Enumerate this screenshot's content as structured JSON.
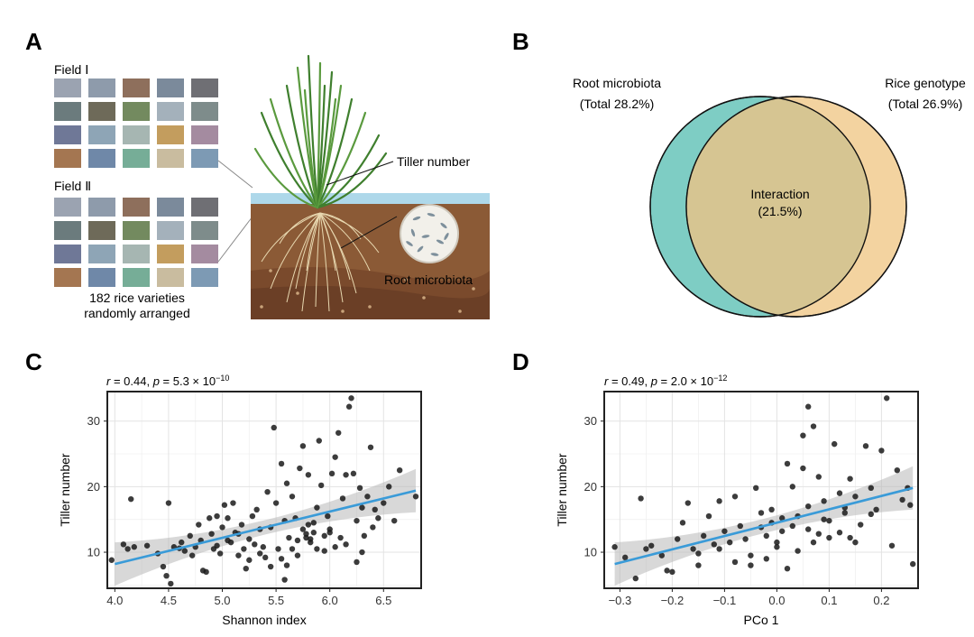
{
  "panels": {
    "a": "A",
    "b": "B",
    "c": "C",
    "d": "D"
  },
  "panel_a": {
    "field1_label": "Field Ⅰ",
    "field2_label": "Field Ⅱ",
    "caption_line1": "182 rice varieties",
    "caption_line2": "randomly arranged",
    "tiller_label": "Tiller number",
    "microbiota_label": "Root microbiota",
    "grid_colors": [
      [
        "#9ba3b1",
        "#8e9bab",
        "#8e6f5c",
        "#7b8a9b",
        "#6f6f74"
      ],
      [
        "#6b7b7d",
        "#6e6a59",
        "#738a5f",
        "#a4b1bb",
        "#7e8c8b"
      ],
      [
        "#6f7897",
        "#8ea5b6",
        "#a6b6b2",
        "#c39d5e",
        "#a48ba0"
      ],
      [
        "#a47651",
        "#6f88a8",
        "#76ad97",
        "#c9bc9f",
        "#7d9ab4"
      ]
    ],
    "soil_color": "#8b5a36",
    "water_color": "#aed8ea"
  },
  "panel_b": {
    "left_label": "Root microbiota",
    "left_total": "(Total 28.2%)",
    "right_label": "Rice genotype",
    "right_total": "(Total 26.9%)",
    "center_label": "Interaction",
    "center_value": "(21.5%)",
    "left_color": "#7ecdc4",
    "right_color": "#f3d3a0",
    "overlap_color": "#d6c592"
  },
  "chart_data": [
    {
      "type": "scatter",
      "panel": "C",
      "stat_prefix_r": "r",
      "stat_r_value": " = 0.44, ",
      "stat_prefix_p": "p",
      "stat_p_value": " = 5.3 × 10",
      "stat_p_exp": "−10",
      "xlabel": "Shannon index",
      "ylabel": "Tiller number",
      "xlim": [
        3.93,
        6.85
      ],
      "ylim": [
        4.5,
        34.5
      ],
      "xticks": [
        4.0,
        4.5,
        5.0,
        5.5,
        6.0,
        6.5
      ],
      "xtick_labels": [
        "4.0",
        "4.5",
        "5.0",
        "5.5",
        "6.0",
        "6.5"
      ],
      "yticks": [
        10,
        20,
        30
      ],
      "ytick_labels": [
        "10",
        "20",
        "30"
      ],
      "fit": {
        "x": [
          4.0,
          6.8
        ],
        "y": [
          8.2,
          19.4
        ]
      },
      "fit_color": "#3a9bd8",
      "points": [
        [
          3.97,
          8.8
        ],
        [
          4.08,
          11.2
        ],
        [
          4.12,
          10.5
        ],
        [
          4.15,
          18.1
        ],
        [
          4.18,
          10.8
        ],
        [
          4.3,
          11.0
        ],
        [
          4.4,
          9.8
        ],
        [
          4.45,
          7.8
        ],
        [
          4.48,
          6.4
        ],
        [
          4.5,
          17.5
        ],
        [
          4.52,
          5.2
        ],
        [
          4.55,
          10.8
        ],
        [
          4.6,
          10.6
        ],
        [
          4.62,
          11.5
        ],
        [
          4.65,
          10.2
        ],
        [
          4.7,
          12.5
        ],
        [
          4.72,
          9.5
        ],
        [
          4.75,
          10.8
        ],
        [
          4.78,
          14.2
        ],
        [
          4.8,
          11.8
        ],
        [
          4.82,
          7.2
        ],
        [
          4.85,
          7.0
        ],
        [
          4.88,
          15.2
        ],
        [
          4.9,
          12.8
        ],
        [
          4.92,
          10.5
        ],
        [
          4.95,
          15.5
        ],
        [
          4.98,
          9.8
        ],
        [
          5.0,
          13.8
        ],
        [
          5.02,
          17.2
        ],
        [
          5.05,
          15.2
        ],
        [
          5.08,
          11.5
        ],
        [
          5.1,
          17.5
        ],
        [
          5.12,
          13.0
        ],
        [
          5.15,
          9.5
        ],
        [
          5.18,
          14.2
        ],
        [
          5.2,
          10.5
        ],
        [
          5.22,
          7.5
        ],
        [
          5.25,
          12.0
        ],
        [
          5.28,
          15.5
        ],
        [
          5.3,
          11.2
        ],
        [
          5.32,
          16.5
        ],
        [
          5.35,
          13.5
        ],
        [
          5.38,
          10.8
        ],
        [
          5.4,
          9.2
        ],
        [
          5.42,
          19.2
        ],
        [
          5.45,
          13.8
        ],
        [
          5.48,
          29.0
        ],
        [
          5.5,
          17.5
        ],
        [
          5.52,
          10.5
        ],
        [
          5.55,
          23.5
        ],
        [
          5.58,
          14.8
        ],
        [
          5.6,
          20.5
        ],
        [
          5.62,
          12.2
        ],
        [
          5.65,
          18.5
        ],
        [
          5.68,
          15.2
        ],
        [
          5.7,
          11.8
        ],
        [
          5.72,
          22.8
        ],
        [
          5.75,
          26.2
        ],
        [
          5.75,
          13.5
        ],
        [
          5.78,
          12.8
        ],
        [
          5.8,
          21.8
        ],
        [
          5.8,
          14.2
        ],
        [
          5.82,
          11.5
        ],
        [
          5.85,
          13.0
        ],
        [
          5.88,
          16.8
        ],
        [
          5.9,
          27.0
        ],
        [
          5.92,
          20.2
        ],
        [
          5.95,
          10.2
        ],
        [
          5.98,
          15.5
        ],
        [
          6.0,
          13.5
        ],
        [
          6.02,
          22.0
        ],
        [
          6.05,
          24.5
        ],
        [
          6.08,
          28.2
        ],
        [
          6.1,
          12.2
        ],
        [
          6.12,
          18.2
        ],
        [
          6.15,
          21.8
        ],
        [
          6.18,
          32.2
        ],
        [
          6.2,
          33.5
        ],
        [
          6.22,
          22.0
        ],
        [
          6.25,
          14.8
        ],
        [
          6.28,
          19.8
        ],
        [
          6.3,
          16.8
        ],
        [
          6.32,
          12.5
        ],
        [
          6.35,
          18.5
        ],
        [
          6.38,
          26.0
        ],
        [
          6.4,
          13.8
        ],
        [
          6.42,
          16.5
        ],
        [
          6.45,
          15.2
        ],
        [
          6.5,
          17.5
        ],
        [
          6.55,
          20.0
        ],
        [
          6.6,
          14.8
        ],
        [
          6.65,
          22.5
        ],
        [
          6.8,
          18.5
        ],
        [
          5.55,
          9.0
        ],
        [
          5.6,
          8.0
        ],
        [
          5.65,
          10.5
        ],
        [
          5.7,
          9.5
        ],
        [
          5.35,
          9.8
        ],
        [
          5.25,
          8.8
        ],
        [
          5.15,
          12.8
        ],
        [
          5.05,
          11.8
        ],
        [
          4.95,
          11.0
        ],
        [
          5.45,
          7.8
        ],
        [
          5.58,
          5.8
        ],
        [
          5.78,
          12.2
        ],
        [
          5.82,
          12.0
        ],
        [
          5.85,
          14.5
        ],
        [
          5.88,
          10.5
        ],
        [
          6.05,
          10.8
        ],
        [
          6.0,
          13.0
        ],
        [
          5.95,
          12.5
        ],
        [
          6.15,
          11.2
        ],
        [
          6.25,
          8.5
        ],
        [
          6.3,
          10.0
        ]
      ]
    },
    {
      "type": "scatter",
      "panel": "D",
      "stat_prefix_r": "r",
      "stat_r_value": " = 0.49, ",
      "stat_prefix_p": "p",
      "stat_p_value": " = 2.0 × 10",
      "stat_p_exp": "−12",
      "xlabel": "PCo 1",
      "ylabel": "Tiller number",
      "xlim": [
        -0.33,
        0.27
      ],
      "ylim": [
        4.5,
        34.5
      ],
      "xticks": [
        -0.3,
        -0.2,
        -0.1,
        0.0,
        0.1,
        0.2
      ],
      "xtick_labels": [
        "−0.3",
        "−0.2",
        "−0.1",
        "0.0",
        "0.1",
        "0.2"
      ],
      "yticks": [
        10,
        20,
        30
      ],
      "ytick_labels": [
        "10",
        "20",
        "30"
      ],
      "fit": {
        "x": [
          -0.31,
          0.26
        ],
        "y": [
          8.2,
          19.8
        ]
      },
      "fit_color": "#3a9bd8",
      "points": [
        [
          -0.31,
          10.8
        ],
        [
          -0.29,
          9.2
        ],
        [
          -0.27,
          6.0
        ],
        [
          -0.26,
          18.2
        ],
        [
          -0.25,
          10.5
        ],
        [
          -0.24,
          11.0
        ],
        [
          -0.22,
          9.5
        ],
        [
          -0.21,
          7.2
        ],
        [
          -0.2,
          7.0
        ],
        [
          -0.19,
          12.0
        ],
        [
          -0.18,
          14.5
        ],
        [
          -0.17,
          17.5
        ],
        [
          -0.16,
          10.5
        ],
        [
          -0.15,
          9.8
        ],
        [
          -0.14,
          12.5
        ],
        [
          -0.13,
          15.5
        ],
        [
          -0.12,
          11.2
        ],
        [
          -0.11,
          17.8
        ],
        [
          -0.1,
          13.2
        ],
        [
          -0.09,
          11.5
        ],
        [
          -0.08,
          18.5
        ],
        [
          -0.07,
          14.0
        ],
        [
          -0.06,
          12.0
        ],
        [
          -0.05,
          9.5
        ],
        [
          -0.04,
          19.8
        ],
        [
          -0.03,
          16.0
        ],
        [
          -0.02,
          12.5
        ],
        [
          -0.01,
          14.5
        ],
        [
          0.0,
          10.8
        ],
        [
          0.01,
          13.2
        ],
        [
          0.02,
          23.5
        ],
        [
          0.03,
          20.0
        ],
        [
          0.04,
          15.5
        ],
        [
          0.05,
          22.8
        ],
        [
          0.06,
          17.0
        ],
        [
          0.07,
          11.5
        ],
        [
          0.08,
          21.5
        ],
        [
          0.09,
          15.0
        ],
        [
          0.1,
          12.2
        ],
        [
          0.11,
          26.5
        ],
        [
          0.12,
          19.0
        ],
        [
          0.13,
          16.8
        ],
        [
          0.14,
          21.2
        ],
        [
          0.15,
          18.5
        ],
        [
          0.16,
          14.2
        ],
        [
          0.17,
          26.2
        ],
        [
          0.18,
          19.8
        ],
        [
          0.19,
          16.5
        ],
        [
          0.2,
          25.5
        ],
        [
          0.21,
          33.5
        ],
        [
          0.22,
          11.0
        ],
        [
          0.23,
          22.5
        ],
        [
          0.24,
          18.0
        ],
        [
          0.25,
          19.8
        ],
        [
          0.255,
          17.2
        ],
        [
          0.26,
          8.2
        ],
        [
          -0.05,
          8.0
        ],
        [
          -0.02,
          9.0
        ],
        [
          0.0,
          11.5
        ],
        [
          0.02,
          7.5
        ],
        [
          0.04,
          10.2
        ],
        [
          0.06,
          13.5
        ],
        [
          0.08,
          12.8
        ],
        [
          0.1,
          14.8
        ],
        [
          0.12,
          13.0
        ],
        [
          0.14,
          12.2
        ],
        [
          0.05,
          27.8
        ],
        [
          0.06,
          32.2
        ],
        [
          0.07,
          29.2
        ],
        [
          -0.03,
          13.8
        ],
        [
          -0.08,
          8.5
        ],
        [
          -0.11,
          10.5
        ],
        [
          -0.15,
          8.0
        ],
        [
          0.03,
          14.0
        ],
        [
          0.09,
          17.8
        ],
        [
          0.13,
          16.0
        ],
        [
          0.15,
          11.5
        ],
        [
          0.18,
          15.8
        ],
        [
          0.01,
          15.2
        ],
        [
          -0.01,
          16.5
        ]
      ]
    }
  ]
}
